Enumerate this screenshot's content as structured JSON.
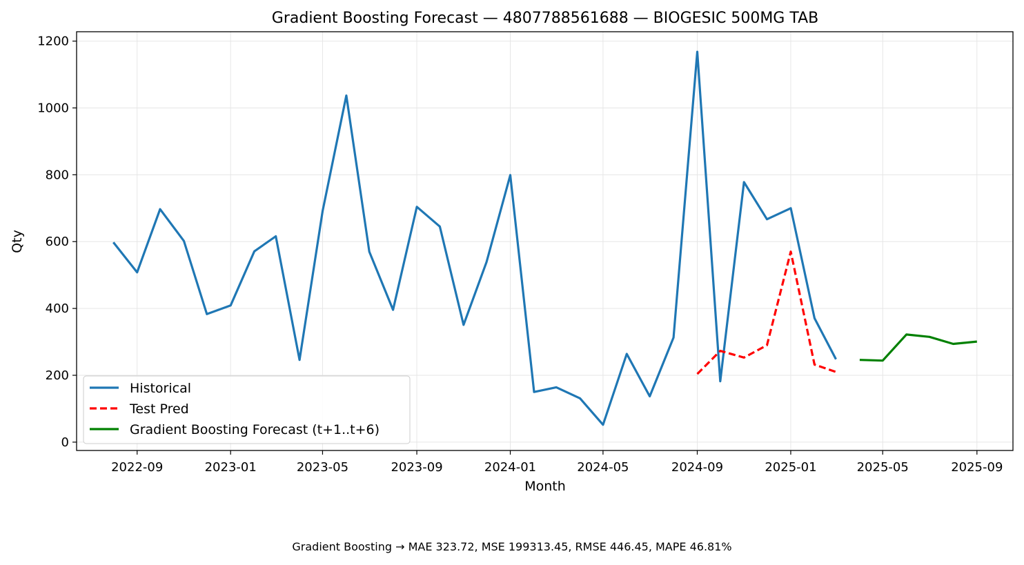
{
  "chart_data": {
    "type": "line",
    "title": "Gradient Boosting Forecast — 4807788561688 — BIOGESIC 500MG TAB",
    "xlabel": "Month",
    "ylabel": "Qty",
    "xlim": [
      "2022-06-14",
      "2025-10-18"
    ],
    "ylim": [
      -25,
      1228
    ],
    "grid": true,
    "legend_position": "lower-left",
    "x_ticks": [
      "2022-09",
      "2023-01",
      "2023-05",
      "2023-09",
      "2024-01",
      "2024-05",
      "2024-09",
      "2025-01",
      "2025-05",
      "2025-09"
    ],
    "y_ticks": [
      0,
      200,
      400,
      600,
      800,
      1000,
      1200
    ],
    "series": [
      {
        "name": "Historical",
        "color": "#1f77b4",
        "style": "solid",
        "x": [
          "2022-08",
          "2022-09",
          "2022-10",
          "2022-11",
          "2022-12",
          "2023-01",
          "2023-02",
          "2023-03",
          "2023-04",
          "2023-05",
          "2023-06",
          "2023-07",
          "2023-08",
          "2023-09",
          "2023-10",
          "2023-11",
          "2023-12",
          "2024-01",
          "2024-02",
          "2024-03",
          "2024-04",
          "2024-05",
          "2024-06",
          "2024-07",
          "2024-08",
          "2024-09",
          "2024-10",
          "2024-11",
          "2024-12",
          "2025-01",
          "2025-02",
          "2025-03"
        ],
        "values": [
          598,
          508,
          697,
          602,
          383,
          409,
          571,
          616,
          246,
          691,
          1037,
          570,
          396,
          704,
          645,
          351,
          539,
          799,
          150,
          164,
          131,
          52,
          264,
          137,
          313,
          1168,
          182,
          778,
          667,
          700,
          371,
          248
        ]
      },
      {
        "name": "Test Pred",
        "color": "#ff0000",
        "style": "dashed",
        "x": [
          "2024-09",
          "2024-10",
          "2024-11",
          "2024-12",
          "2025-01",
          "2025-02",
          "2025-03"
        ],
        "values": [
          204,
          273,
          253,
          290,
          570,
          232,
          210
        ]
      },
      {
        "name": "Gradient Boosting Forecast (t+1..t+6)",
        "color": "#008000",
        "style": "solid",
        "x": [
          "2025-04",
          "2025-05",
          "2025-06",
          "2025-07",
          "2025-08",
          "2025-09"
        ],
        "values": [
          246,
          244,
          322,
          315,
          294,
          301
        ]
      }
    ]
  },
  "footer_text": "Gradient Boosting → MAE 323.72, MSE 199313.45, RMSE 446.45, MAPE 46.81%"
}
